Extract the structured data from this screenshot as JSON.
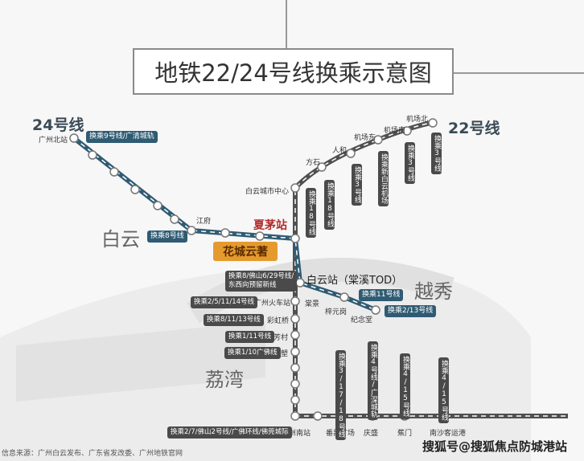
{
  "title": "地铁22/24号线换乘示意图",
  "lines": {
    "line24": "24号线",
    "line22": "22号线"
  },
  "colors": {
    "line24": "#2f5b73",
    "line22": "#505050",
    "highlight": "#e59a2e",
    "xiamao": "#b22a2a"
  },
  "districts": {
    "baiyun": "白云",
    "yuexiu": "越秀",
    "liwan": "荔湾"
  },
  "project": "花城云著",
  "stations": {
    "gzbz": "广州北站",
    "jiangfu": "江府",
    "xiamao": "夏茅站",
    "bycsz": "白云城市中心",
    "fangshi": "方石",
    "renhe": "人和",
    "jcd": "机场东",
    "jcn": "机场南",
    "jcb": "机场北",
    "byz": "白云站（棠溪TOD）",
    "tangjing": "棠景",
    "zyg": "梓元岗",
    "jnt": "纪念堂",
    "gzhcz": "广州火车站",
    "chq": "彩虹桥",
    "fangcun": "芳村",
    "xilang": "西塱",
    "gznz": "广州南站",
    "pygc": "番禺广场",
    "qingsheng": "庆盛",
    "jiaomen": "蕉门",
    "nskyg": "南沙客运港"
  },
  "transfers": {
    "gzbz": "换乘9号线/广清城轨",
    "jiangfu": "换乘8号线",
    "bycsz": "换乘18号线",
    "fangshi": "换乘18号线",
    "renhe": "换乘3号线",
    "jcd": "换乘新白云机场",
    "jcn": "换乘3号线",
    "jcb": "换乘3号线",
    "byz1": "换乘8/佛山6/29号线/",
    "byz2": "东西向预留新线",
    "zyg": "换乘11号线",
    "jnt": "换乘2/13号线",
    "gzhcz": "换乘2/5/11/14号线",
    "chq": "换乘8/11/13号线",
    "fangcun": "换乘1/11号线",
    "xilang": "换乘1/10广佛线",
    "gznz": "换乘2/7/佛山2号线/广佛环线/佛莞城际",
    "pygc": "换乘3/17/18号线",
    "qingsheng": "换乘4号线/广深城轨",
    "jiaomen": "换乘4/15号线",
    "nskyg": "换乘4/15号线"
  },
  "footer": {
    "source": "信息来源：广州白云发布、广东省发改委、广州地铁官网",
    "watermark": "搜狐号@搜狐焦点防城港站"
  }
}
